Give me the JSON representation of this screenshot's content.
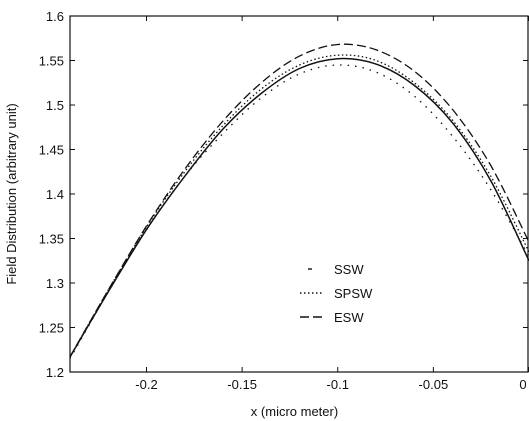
{
  "chart_data": {
    "type": "line",
    "xlabel": "x (micro meter)",
    "ylabel": "Field Distribution (arbitrary unit)",
    "xlim": [
      -0.24,
      0.0
    ],
    "ylim": [
      1.2,
      1.6
    ],
    "x_ticks": [
      -0.2,
      -0.15,
      -0.1,
      -0.05,
      0
    ],
    "x_tick_labels": [
      "-0.2",
      "-0.15",
      "-0.1",
      "-0.05",
      "0"
    ],
    "y_ticks": [
      1.2,
      1.25,
      1.3,
      1.35,
      1.4,
      1.45,
      1.5,
      1.55,
      1.6
    ],
    "y_tick_labels": [
      "1.2",
      "1.25",
      "1.3",
      "1.35",
      "1.4",
      "1.45",
      "1.5",
      "1.55",
      "1.6"
    ],
    "grid": false,
    "legend_position": "center-right",
    "series": [
      {
        "name": "SSW",
        "style": "dotted-sparse",
        "color": "#111111",
        "x": [
          -0.24,
          -0.22,
          -0.2,
          -0.18,
          -0.16,
          -0.14,
          -0.12,
          -0.1,
          -0.08,
          -0.06,
          -0.04,
          -0.02,
          0.0
        ],
        "y": [
          1.215,
          1.29,
          1.36,
          1.42,
          1.468,
          1.508,
          1.535,
          1.545,
          1.537,
          1.51,
          1.465,
          1.405,
          1.33
        ]
      },
      {
        "name": "SPSW",
        "style": "dotted",
        "color": "#111111",
        "x": [
          -0.24,
          -0.22,
          -0.2,
          -0.18,
          -0.16,
          -0.14,
          -0.12,
          -0.1,
          -0.08,
          -0.06,
          -0.04,
          -0.02,
          0.0
        ],
        "y": [
          1.217,
          1.292,
          1.363,
          1.425,
          1.477,
          1.518,
          1.545,
          1.556,
          1.55,
          1.525,
          1.483,
          1.42,
          1.335
        ]
      },
      {
        "name": "ESW",
        "style": "dashed",
        "color": "#111111",
        "x": [
          -0.24,
          -0.22,
          -0.2,
          -0.18,
          -0.16,
          -0.14,
          -0.12,
          -0.1,
          -0.08,
          -0.06,
          -0.04,
          -0.02,
          0.0
        ],
        "y": [
          1.217,
          1.292,
          1.364,
          1.428,
          1.482,
          1.525,
          1.555,
          1.568,
          1.562,
          1.538,
          1.495,
          1.432,
          1.346
        ]
      },
      {
        "name": "",
        "style": "solid",
        "color": "#111111",
        "x": [
          -0.24,
          -0.22,
          -0.2,
          -0.18,
          -0.16,
          -0.14,
          -0.12,
          -0.1,
          -0.08,
          -0.06,
          -0.04,
          -0.02,
          0.0
        ],
        "y": [
          1.217,
          1.29,
          1.36,
          1.42,
          1.473,
          1.513,
          1.541,
          1.552,
          1.546,
          1.522,
          1.48,
          1.415,
          1.325
        ]
      }
    ]
  },
  "legend": {
    "items": [
      {
        "label": "SSW",
        "style": "dotted-sparse"
      },
      {
        "label": "SPSW",
        "style": "dotted"
      },
      {
        "label": "ESW",
        "style": "dashed"
      }
    ]
  }
}
